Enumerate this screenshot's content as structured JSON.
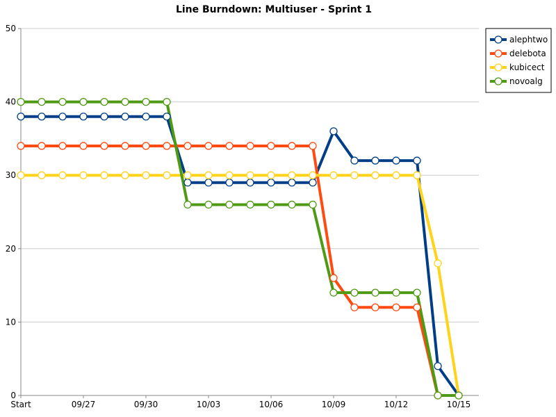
{
  "chart_data": {
    "type": "line",
    "title": "Line Burndown: Multiuser - Sprint 1",
    "xlabel": "",
    "ylabel": "",
    "ylim": [
      0,
      50
    ],
    "yticks": [
      0,
      10,
      20,
      30,
      40,
      50
    ],
    "grid": true,
    "legend_position": "top-right",
    "x_tick_labels": [
      {
        "index": 0,
        "label": "Start"
      },
      {
        "index": 3,
        "label": "09/27"
      },
      {
        "index": 6,
        "label": "09/30"
      },
      {
        "index": 9,
        "label": "10/03"
      },
      {
        "index": 12,
        "label": "10/06"
      },
      {
        "index": 15,
        "label": "10/09"
      },
      {
        "index": 18,
        "label": "10/12"
      },
      {
        "index": 21,
        "label": "10/15"
      }
    ],
    "x_count": 22,
    "series": [
      {
        "name": "alephtwo",
        "color": "#003f87",
        "values": [
          38,
          38,
          38,
          38,
          38,
          38,
          38,
          38,
          29,
          29,
          29,
          29,
          29,
          29,
          29,
          36,
          32,
          32,
          32,
          32,
          4,
          0
        ]
      },
      {
        "name": "delebota",
        "color": "#ff4a12",
        "values": [
          34,
          34,
          34,
          34,
          34,
          34,
          34,
          34,
          34,
          34,
          34,
          34,
          34,
          34,
          34,
          16,
          12,
          12,
          12,
          12,
          0,
          0
        ]
      },
      {
        "name": "kubicect",
        "color": "#ffd31a",
        "values": [
          30,
          30,
          30,
          30,
          30,
          30,
          30,
          30,
          30,
          30,
          30,
          30,
          30,
          30,
          30,
          30,
          30,
          30,
          30,
          30,
          18,
          0
        ]
      },
      {
        "name": "novoalg",
        "color": "#4f9a14",
        "values": [
          40,
          40,
          40,
          40,
          40,
          40,
          40,
          40,
          26,
          26,
          26,
          26,
          26,
          26,
          26,
          14,
          14,
          14,
          14,
          14,
          0,
          0
        ]
      }
    ]
  }
}
